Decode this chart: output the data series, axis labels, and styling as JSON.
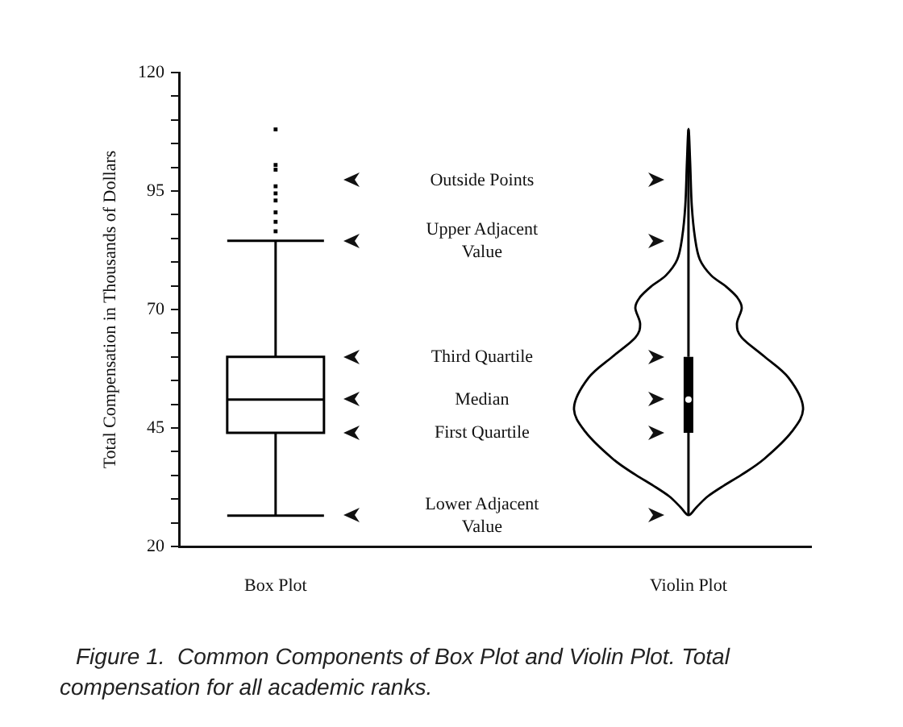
{
  "chart_data": {
    "type": "box",
    "categories": [
      "Box Plot",
      "Violin Plot"
    ],
    "ylabel": "Total Compensation in Thousands of Dollars",
    "ylim": [
      20,
      120
    ],
    "yticks": [
      20,
      {
        "value": 25,
        "label": null
      },
      {
        "value": 30,
        "label": null
      },
      {
        "value": 35,
        "label": null
      },
      {
        "value": 40,
        "label": null
      },
      45,
      {
        "value": 50,
        "label": null
      },
      {
        "value": 55,
        "label": null
      },
      {
        "value": 60,
        "label": null
      },
      {
        "value": 65,
        "label": null
      },
      70,
      {
        "value": 75,
        "label": null
      },
      {
        "value": 80,
        "label": null
      },
      {
        "value": 85,
        "label": null
      },
      {
        "value": 90,
        "label": null
      },
      95,
      {
        "value": 100,
        "label": null
      },
      {
        "value": 105,
        "label": null
      },
      {
        "value": 110,
        "label": null
      },
      {
        "value": 115,
        "label": null
      },
      120
    ],
    "series": [
      {
        "color": "#000000",
        "boxes": [
          {
            "low": 26.5,
            "q1": 44,
            "median": 51,
            "q3": 60,
            "high": 84.5,
            "outliers": [
              108,
              100.5,
              99.5,
              96,
              94.5,
              93,
              90.5,
              88.5,
              86.5
            ]
          },
          null
        ]
      },
      {
        "color": "#000000",
        "boxes": [
          null,
          {
            "low": 26.5,
            "q1": 44,
            "median": 51,
            "q3": 60,
            "high": 108
          }
        ]
      }
    ],
    "annotations": [
      "Outside Points",
      "Upper Adjacent Value",
      "Third Quartile",
      "Median",
      "First Quartile",
      "Lower Adjacent Value",
      "Figure 1.  Common Components of Box Plot and Violin Plot. Total compensation for all academic ranks."
    ],
    "grid": false,
    "legend": false
  }
}
